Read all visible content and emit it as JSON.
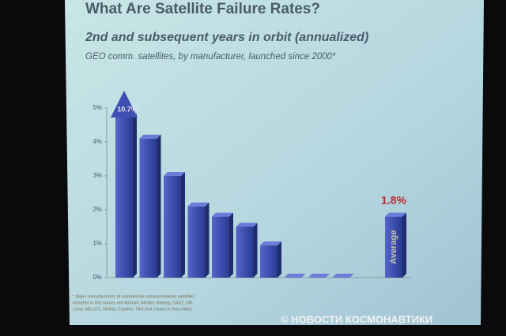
{
  "chart_data": {
    "type": "bar",
    "title": "What Are Satellite Failure Rates?",
    "subtitle": "2nd and subsequent years in orbit (annualized)",
    "note": "GEO comm. satellites, by manufacturer, launched since 2000*",
    "categories": [
      null,
      null,
      null,
      null,
      null,
      null,
      null,
      null,
      null,
      null,
      "Average"
    ],
    "values": [
      10.7,
      4.1,
      3.0,
      2.1,
      1.8,
      1.5,
      0.95,
      0,
      0,
      0,
      1.8
    ],
    "value_labels": [
      "10.7%",
      null,
      null,
      null,
      null,
      null,
      null,
      null,
      null,
      null,
      "1.8%"
    ],
    "color": "#3d4fb0",
    "ylim": [
      0,
      5
    ],
    "yticks": [
      {
        "value": 0,
        "label": "0%"
      },
      {
        "value": 1,
        "label": "1%"
      },
      {
        "value": 2,
        "label": "2%"
      },
      {
        "value": 3,
        "label": "3%"
      },
      {
        "value": 4,
        "label": "4%"
      },
      {
        "value": 5,
        "label": "5%"
      }
    ],
    "grid": false,
    "footnote": [
      "* Major manufacturers of commercial communications satellites",
      "included in this survey are Astrium, Alcatel, Boeing, CAST, LM,",
      "Loral, MELCO, Orbital, Eastern, TAS (not shown in that order)"
    ],
    "watermark": "© НОВОСТИ КОСМОНАВТИКИ"
  }
}
